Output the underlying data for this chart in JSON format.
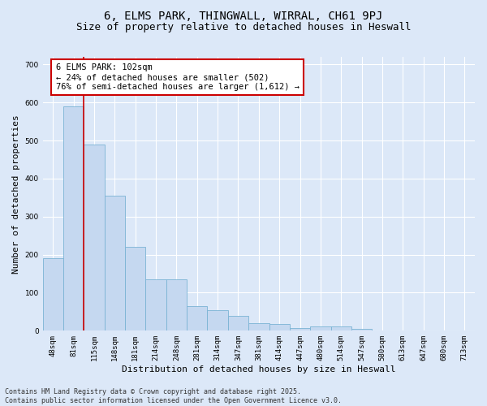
{
  "title": "6, ELMS PARK, THINGWALL, WIRRAL, CH61 9PJ",
  "subtitle": "Size of property relative to detached houses in Heswall",
  "xlabel": "Distribution of detached houses by size in Heswall",
  "ylabel": "Number of detached properties",
  "categories": [
    "48sqm",
    "81sqm",
    "115sqm",
    "148sqm",
    "181sqm",
    "214sqm",
    "248sqm",
    "281sqm",
    "314sqm",
    "347sqm",
    "381sqm",
    "414sqm",
    "447sqm",
    "480sqm",
    "514sqm",
    "547sqm",
    "580sqm",
    "613sqm",
    "647sqm",
    "680sqm",
    "713sqm"
  ],
  "values": [
    190,
    590,
    490,
    355,
    220,
    135,
    135,
    65,
    55,
    40,
    20,
    18,
    7,
    12,
    12,
    5,
    0,
    0,
    0,
    0,
    0
  ],
  "bar_color": "#c5d8f0",
  "bar_edge_color": "#7ab3d4",
  "red_line_x": 1.5,
  "annotation_text": "6 ELMS PARK: 102sqm\n← 24% of detached houses are smaller (502)\n76% of semi-detached houses are larger (1,612) →",
  "annotation_box_color": "#ffffff",
  "annotation_box_edge_color": "#cc0000",
  "ylim": [
    0,
    720
  ],
  "yticks": [
    0,
    100,
    200,
    300,
    400,
    500,
    600,
    700
  ],
  "footer": "Contains HM Land Registry data © Crown copyright and database right 2025.\nContains public sector information licensed under the Open Government Licence v3.0.",
  "background_color": "#dce8f8",
  "grid_color": "#ffffff",
  "title_fontsize": 10,
  "subtitle_fontsize": 9,
  "tick_fontsize": 6.5,
  "ylabel_fontsize": 8,
  "xlabel_fontsize": 8,
  "footer_fontsize": 6,
  "annotation_fontsize": 7.5
}
